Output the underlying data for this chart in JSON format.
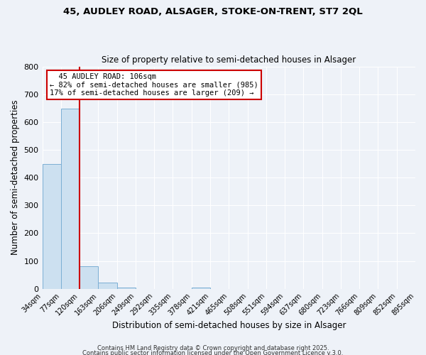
{
  "title": "45, AUDLEY ROAD, ALSAGER, STOKE-ON-TRENT, ST7 2QL",
  "subtitle": "Size of property relative to semi-detached houses in Alsager",
  "xlabel": "Distribution of semi-detached houses by size in Alsager",
  "ylabel": "Number of semi-detached properties",
  "bar_values": [
    450,
    648,
    80,
    22,
    5,
    0,
    0,
    0,
    5,
    0,
    0,
    0,
    0,
    0,
    0,
    0,
    0,
    0,
    0,
    0
  ],
  "bin_labels": [
    "34sqm",
    "77sqm",
    "120sqm",
    "163sqm",
    "206sqm",
    "249sqm",
    "292sqm",
    "335sqm",
    "378sqm",
    "421sqm",
    "465sqm",
    "508sqm",
    "551sqm",
    "594sqm",
    "637sqm",
    "680sqm",
    "723sqm",
    "766sqm",
    "809sqm",
    "852sqm",
    "895sqm"
  ],
  "bar_color": "#cce0f0",
  "bar_edge_color": "#7bafd4",
  "property_line_x": 2.0,
  "property_line_color": "#cc0000",
  "annotation_title": "45 AUDLEY ROAD: 106sqm",
  "annotation_line1": "← 82% of semi-detached houses are smaller (985)",
  "annotation_line2": "17% of semi-detached houses are larger (209) →",
  "annotation_box_color": "#cc0000",
  "ylim": [
    0,
    800
  ],
  "yticks": [
    0,
    100,
    200,
    300,
    400,
    500,
    600,
    700,
    800
  ],
  "background_color": "#eef2f8",
  "footer1": "Contains HM Land Registry data © Crown copyright and database right 2025.",
  "footer2": "Contains public sector information licensed under the Open Government Licence v.3.0.",
  "num_bins": 20,
  "figsize": [
    6.0,
    5.0
  ],
  "dpi": 100
}
